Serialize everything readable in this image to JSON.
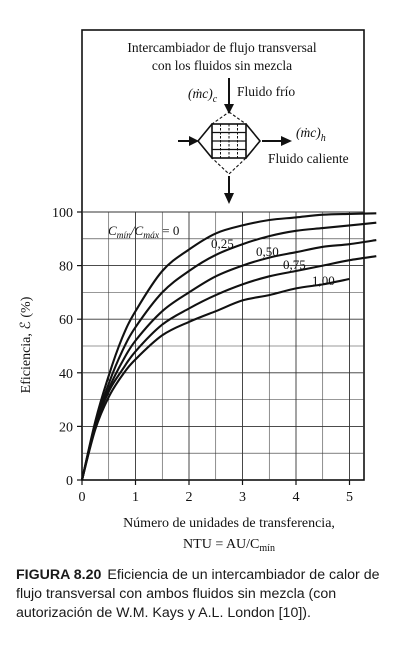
{
  "chart_data": {
    "type": "line",
    "xlabel_line1": "Número de unidades de transferencia,",
    "xlabel_line2": "NTU = AU/C",
    "xlabel_line2_sub": "mín",
    "ylabel": "Eficiencia, ℰ (%)",
    "xlim": [
      0,
      5.5
    ],
    "ylim": [
      0,
      105
    ],
    "x_ticks": [
      0,
      1,
      2,
      3,
      4,
      5
    ],
    "y_ticks": [
      0,
      20,
      40,
      60,
      80,
      100
    ],
    "grid": true,
    "series": [
      {
        "name": "Cmín/Cmáx = 0",
        "x": [
          0,
          0.25,
          0.5,
          0.75,
          1,
          1.5,
          2,
          2.5,
          3,
          3.5,
          4,
          4.5,
          5,
          5.5
        ],
        "y": [
          0,
          22,
          39,
          53,
          63,
          78,
          86,
          92,
          95,
          97,
          98,
          99,
          99.3,
          99.5
        ]
      },
      {
        "name": "0,25",
        "x": [
          0,
          0.25,
          0.5,
          0.75,
          1,
          1.5,
          2,
          2.5,
          3,
          3.5,
          4,
          4.5,
          5,
          5.5
        ],
        "y": [
          0,
          21,
          36,
          48,
          57,
          70,
          78,
          84,
          88,
          91,
          93,
          94,
          95,
          96
        ]
      },
      {
        "name": "0,50",
        "x": [
          0,
          0.25,
          0.5,
          0.75,
          1,
          1.5,
          2,
          2.5,
          3,
          3.5,
          4,
          4.5,
          5,
          5.5
        ],
        "y": [
          0,
          20,
          34,
          44,
          52,
          63,
          70,
          76,
          80,
          83,
          85,
          87,
          88,
          89.5
        ]
      },
      {
        "name": "0,75",
        "x": [
          0,
          0.25,
          0.5,
          0.75,
          1,
          1.5,
          2,
          2.5,
          3,
          3.5,
          4,
          4.5,
          5,
          5.5
        ],
        "y": [
          0,
          20,
          33,
          41,
          48,
          58,
          64,
          69,
          73,
          76,
          78,
          80,
          82,
          83.5
        ]
      },
      {
        "name": "1,00",
        "x": [
          0,
          0.25,
          0.5,
          0.75,
          1,
          1.5,
          2,
          2.5,
          3,
          3.5,
          4,
          4.5,
          5
        ],
        "y": [
          0,
          19,
          31,
          39,
          45,
          54,
          59,
          63,
          67,
          69,
          71.5,
          73,
          75
        ]
      }
    ],
    "curve_label_prefix": "C",
    "curve_label_sub1": "mín",
    "curve_label_mid": "/C",
    "curve_label_sub2": "máx",
    "curve_label_suffix": " = 0",
    "labels": [
      "0,25",
      "0,50",
      "0,75",
      "1,00"
    ]
  },
  "inset": {
    "title_line1": "Intercambiador de flujo transversal",
    "title_line2": "con los fluidos sin mezcla",
    "cold_flow": "(ṁc)",
    "cold_flow_sub": "c",
    "cold_label": "Fluido frío",
    "hot_flow": "(ṁc)",
    "hot_flow_sub": "h",
    "hot_label": "Fluido caliente"
  },
  "caption": {
    "figure_number": "FIGURA 8.20",
    "text": "Eficiencia de un intercambiador de calor de flujo transversal con ambos fluidos sin mezcla (con autorización de W.M. Kays y A.L. London [10])."
  }
}
